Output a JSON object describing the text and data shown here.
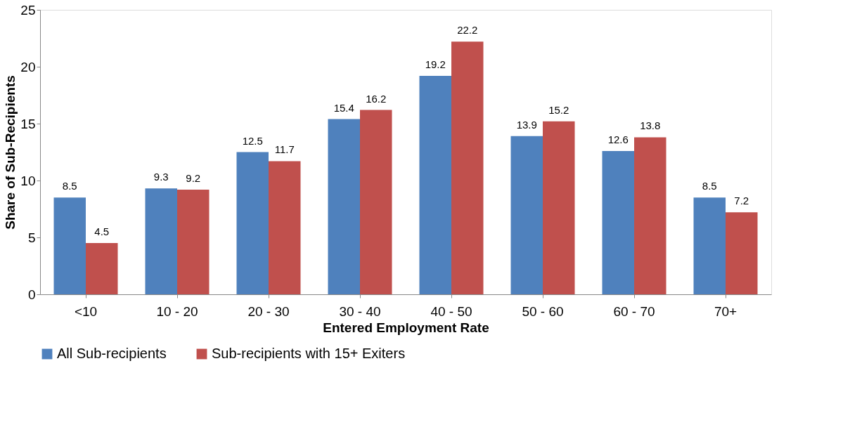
{
  "chart_data": {
    "type": "bar",
    "xlabel": "Entered Employment Rate",
    "ylabel": "Share of Sub-Recipients",
    "categories": [
      "<10",
      "10 - 20",
      "20 - 30",
      "30 - 40",
      "40 - 50",
      "50 - 60",
      "60 - 70",
      "70+"
    ],
    "series": [
      {
        "name": "All Sub-recipients",
        "color": "#4f81bd",
        "values": [
          8.5,
          9.3,
          12.5,
          15.4,
          19.2,
          13.9,
          12.6,
          8.5
        ]
      },
      {
        "name": "Sub-recipients with 15+ Exiters",
        "color": "#c0504d",
        "values": [
          4.5,
          9.2,
          11.7,
          16.2,
          22.2,
          15.2,
          13.8,
          7.2
        ]
      }
    ],
    "ylim": [
      0,
      25
    ],
    "yticks": [
      0,
      5,
      10,
      15,
      20,
      25
    ],
    "grid": false,
    "legend": "bottom",
    "data_labels": true
  }
}
